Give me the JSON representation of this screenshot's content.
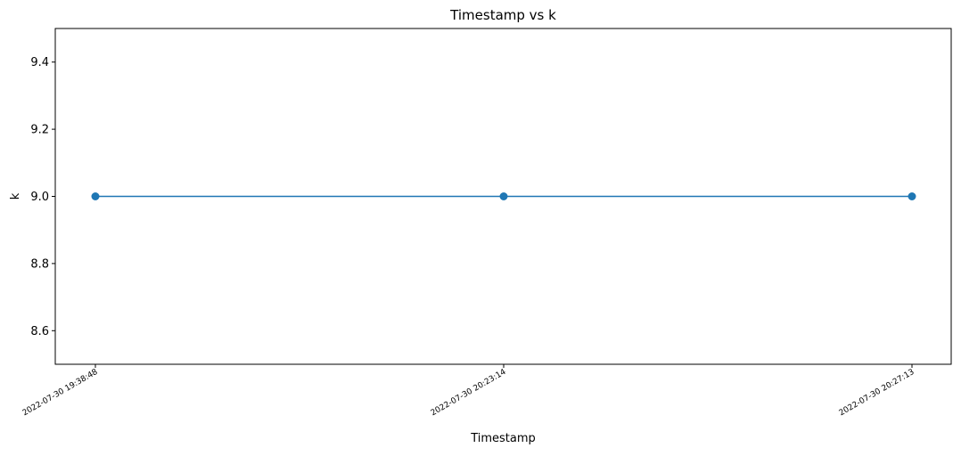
{
  "chart_data": {
    "type": "line",
    "title": "Timestamp vs k",
    "xlabel": "Timestamp",
    "ylabel": "k",
    "categories": [
      "2022-07-30 19:38:48",
      "2022-07-30 20:23:14",
      "2022-07-30 20:27:13"
    ],
    "series": [
      {
        "values": [
          9.0,
          9.0,
          9.0
        ],
        "color": "#1f77b4",
        "marker": "circle"
      }
    ],
    "ylim": [
      8.5,
      9.5
    ],
    "yticks": [
      8.6,
      8.8,
      9.0,
      9.2,
      9.4
    ],
    "ytick_labels": [
      "8.6",
      "8.8",
      "9.0",
      "9.2",
      "9.4"
    ],
    "grid": false,
    "legend": "none"
  }
}
